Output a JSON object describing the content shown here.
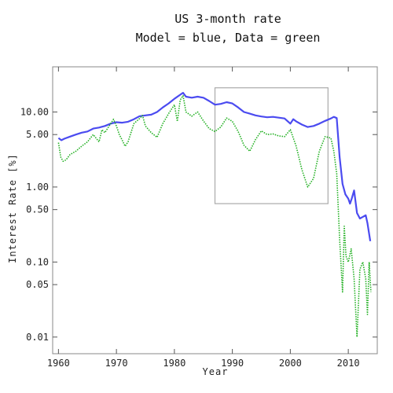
{
  "chart_data": {
    "type": "line",
    "title": "US 3-month rate",
    "subtitle": "Model = blue, Data = green",
    "xlabel": "Year",
    "ylabel": "Interest Rate [%]",
    "xlim": [
      1959,
      2015
    ],
    "ylim": [
      0.006,
      40
    ],
    "y_scale": "log",
    "grid": false,
    "x_ticks": [
      1960,
      1970,
      1980,
      1990,
      2000,
      2010
    ],
    "x_tick_labels": [
      "1960",
      "1970",
      "1980",
      "1990",
      "2000",
      "2010"
    ],
    "y_ticks": [
      0.01,
      0.05,
      0.1,
      0.5,
      1,
      5,
      10
    ],
    "y_tick_labels": [
      "0.01",
      "0.05",
      "0.10",
      "0.50",
      "1.00",
      "5.00",
      "10.00"
    ],
    "highlight_box": {
      "x_range": [
        1987,
        2006.5
      ],
      "y_range": [
        0.6,
        21
      ]
    },
    "series": [
      {
        "color": "#4b4bf0",
        "style": "solid",
        "points": [
          [
            1960,
            4.5
          ],
          [
            1960.5,
            4.2
          ],
          [
            1961,
            4.4
          ],
          [
            1962,
            4.7
          ],
          [
            1963,
            5.0
          ],
          [
            1964,
            5.3
          ],
          [
            1965,
            5.5
          ],
          [
            1966,
            6.0
          ],
          [
            1967,
            6.2
          ],
          [
            1968,
            6.5
          ],
          [
            1969,
            7.0
          ],
          [
            1970,
            7.3
          ],
          [
            1971,
            7.2
          ],
          [
            1972,
            7.4
          ],
          [
            1973,
            8.0
          ],
          [
            1974,
            8.8
          ],
          [
            1975,
            9.0
          ],
          [
            1976,
            9.2
          ],
          [
            1977,
            10.0
          ],
          [
            1978,
            11.5
          ],
          [
            1979,
            13.0
          ],
          [
            1980,
            15.0
          ],
          [
            1981,
            17.0
          ],
          [
            1981.5,
            18.0
          ],
          [
            1982,
            16.0
          ],
          [
            1983,
            15.5
          ],
          [
            1984,
            16.0
          ],
          [
            1985,
            15.5
          ],
          [
            1986,
            14.0
          ],
          [
            1987,
            12.5
          ],
          [
            1988,
            12.8
          ],
          [
            1989,
            13.5
          ],
          [
            1990,
            13.0
          ],
          [
            1991,
            11.5
          ],
          [
            1992,
            10.0
          ],
          [
            1993,
            9.5
          ],
          [
            1994,
            9.0
          ],
          [
            1995,
            8.7
          ],
          [
            1996,
            8.5
          ],
          [
            1997,
            8.6
          ],
          [
            1998,
            8.4
          ],
          [
            1999,
            8.2
          ],
          [
            2000,
            7.0
          ],
          [
            2000.5,
            8.0
          ],
          [
            2001,
            7.5
          ],
          [
            2002,
            6.8
          ],
          [
            2003,
            6.3
          ],
          [
            2004,
            6.5
          ],
          [
            2005,
            7.0
          ],
          [
            2006,
            7.6
          ],
          [
            2007,
            8.2
          ],
          [
            2007.5,
            8.6
          ],
          [
            2008,
            8.3
          ],
          [
            2008.5,
            2.5
          ],
          [
            2009,
            1.1
          ],
          [
            2009.5,
            0.8
          ],
          [
            2010,
            0.7
          ],
          [
            2010.3,
            0.6
          ],
          [
            2010.6,
            0.7
          ],
          [
            2011,
            0.9
          ],
          [
            2011.5,
            0.45
          ],
          [
            2012,
            0.38
          ],
          [
            2012.5,
            0.4
          ],
          [
            2013,
            0.42
          ],
          [
            2013.3,
            0.33
          ],
          [
            2013.8,
            0.19
          ]
        ]
      },
      {
        "color": "#22b022",
        "style": "dotted",
        "points": [
          [
            1960,
            3.9
          ],
          [
            1960.4,
            2.5
          ],
          [
            1960.8,
            2.2
          ],
          [
            1961.3,
            2.3
          ],
          [
            1962,
            2.7
          ],
          [
            1963,
            3.0
          ],
          [
            1964,
            3.5
          ],
          [
            1965,
            4.0
          ],
          [
            1966,
            5.0
          ],
          [
            1967,
            4.0
          ],
          [
            1967.5,
            5.8
          ],
          [
            1968,
            5.3
          ],
          [
            1969,
            7.0
          ],
          [
            1969.5,
            8.0
          ],
          [
            1970,
            6.5
          ],
          [
            1970.5,
            5.0
          ],
          [
            1971,
            4.2
          ],
          [
            1971.5,
            3.5
          ],
          [
            1972,
            4.0
          ],
          [
            1973,
            7.0
          ],
          [
            1974,
            8.2
          ],
          [
            1974.5,
            9.0
          ],
          [
            1975,
            6.5
          ],
          [
            1976,
            5.3
          ],
          [
            1977,
            4.6
          ],
          [
            1978,
            7.0
          ],
          [
            1979,
            9.5
          ],
          [
            1980,
            12.5
          ],
          [
            1980.5,
            7.5
          ],
          [
            1981,
            14.5
          ],
          [
            1981.5,
            16.5
          ],
          [
            1982,
            10.0
          ],
          [
            1983,
            8.8
          ],
          [
            1984,
            10.0
          ],
          [
            1985,
            7.6
          ],
          [
            1986,
            6.0
          ],
          [
            1987,
            5.5
          ],
          [
            1988,
            6.3
          ],
          [
            1989,
            8.3
          ],
          [
            1990,
            7.5
          ],
          [
            1991,
            5.5
          ],
          [
            1992,
            3.6
          ],
          [
            1993,
            3.0
          ],
          [
            1994,
            4.3
          ],
          [
            1995,
            5.6
          ],
          [
            1996,
            5.0
          ],
          [
            1997,
            5.1
          ],
          [
            1998,
            4.8
          ],
          [
            1999,
            4.7
          ],
          [
            2000,
            5.8
          ],
          [
            2001,
            3.5
          ],
          [
            2002,
            1.7
          ],
          [
            2003,
            1.0
          ],
          [
            2004,
            1.3
          ],
          [
            2005,
            3.0
          ],
          [
            2006,
            4.7
          ],
          [
            2007,
            4.5
          ],
          [
            2007.5,
            3.0
          ],
          [
            2008,
            1.5
          ],
          [
            2008.5,
            0.2
          ],
          [
            2009,
            0.04
          ],
          [
            2009.3,
            0.3
          ],
          [
            2009.6,
            0.12
          ],
          [
            2010,
            0.1
          ],
          [
            2010.5,
            0.15
          ],
          [
            2011,
            0.06
          ],
          [
            2011.5,
            0.01
          ],
          [
            2012,
            0.08
          ],
          [
            2012.5,
            0.1
          ],
          [
            2013,
            0.06
          ],
          [
            2013.3,
            0.02
          ],
          [
            2013.6,
            0.1
          ],
          [
            2013.9,
            0.04
          ]
        ]
      }
    ]
  }
}
